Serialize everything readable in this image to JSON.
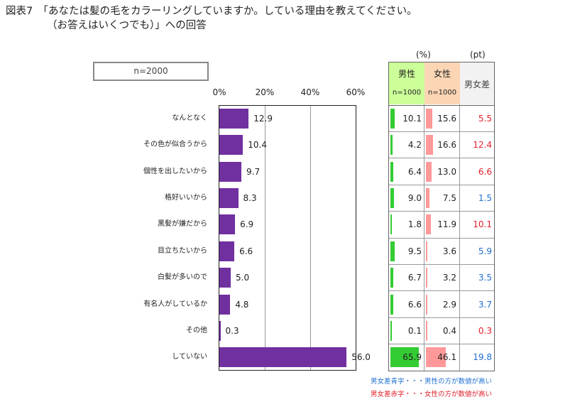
{
  "title": {
    "line1": "図表7　「あなたは髪の毛をカラーリングしていますか。している理由を教えてください。",
    "line2": "（お答えはいくつでも）」への回答"
  },
  "sample": "n=2000",
  "units": {
    "pct": "(%)",
    "pt": "(pt)"
  },
  "table_headers": {
    "male": "男性",
    "male_n": "n=1000",
    "female": "女性",
    "female_n": "n=1000",
    "diff": "男女差"
  },
  "notes": {
    "blue": "男女差青字・・・男性の方が数値が高い",
    "red": "男女差赤字・・・女性の方が数値が高い"
  },
  "colors": {
    "bar": "#7030a0",
    "male": "#33cc33",
    "female": "#ff9999",
    "blue": "#1f6fd1",
    "red": "#e0202a"
  },
  "chart_data": {
    "type": "bar",
    "orientation": "horizontal",
    "xlim": [
      0,
      60
    ],
    "ticks": [
      "0%",
      "20%",
      "40%",
      "60%"
    ],
    "tick_values": [
      0,
      20,
      40,
      60
    ],
    "categories": [
      "なんとなく",
      "その色が似合うから",
      "個性を出したいから",
      "格好いいから",
      "黒髪が嫌だから",
      "目立ちたいから",
      "白髪が多いので",
      "有名人がしているか",
      "その他",
      "していない"
    ],
    "values": [
      12.9,
      10.4,
      9.7,
      8.3,
      6.9,
      6.6,
      5.0,
      4.8,
      0.3,
      56.0
    ],
    "value_labels": [
      "12.9",
      "10.4",
      "9.7",
      "8.3",
      "6.9",
      "6.6",
      "5.0",
      "4.8",
      "0.3",
      "56.0"
    ],
    "male": [
      10.1,
      4.2,
      6.4,
      9.0,
      1.8,
      9.5,
      6.7,
      6.6,
      0.1,
      65.9
    ],
    "male_labels": [
      "10.1",
      "4.2",
      "6.4",
      "9.0",
      "1.8",
      "9.5",
      "6.7",
      "6.6",
      "0.1",
      "65.9"
    ],
    "female": [
      15.6,
      16.6,
      13.0,
      7.5,
      11.9,
      3.6,
      3.2,
      2.9,
      0.4,
      46.1
    ],
    "female_labels": [
      "15.6",
      "16.6",
      "13.0",
      "7.5",
      "11.9",
      "3.6",
      "3.2",
      "2.9",
      "0.4",
      "46.1"
    ],
    "diff_labels": [
      "5.5",
      "12.4",
      "6.6",
      "1.5",
      "10.1",
      "5.9",
      "3.5",
      "3.7",
      "0.3",
      "19.8"
    ],
    "diff_color": [
      "red",
      "red",
      "red",
      "blue",
      "red",
      "blue",
      "blue",
      "blue",
      "red",
      "blue"
    ]
  }
}
